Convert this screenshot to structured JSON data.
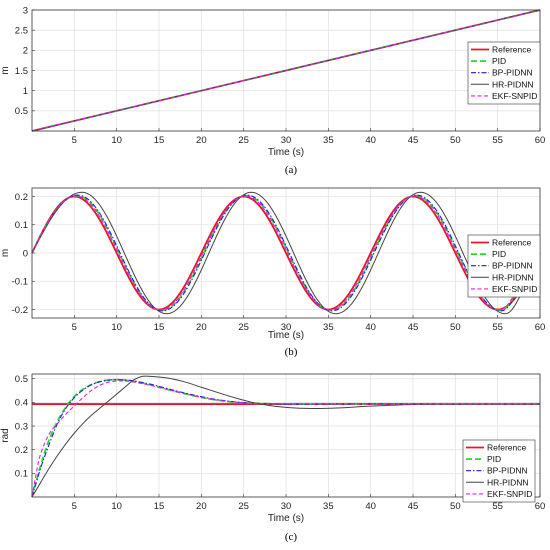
{
  "colors": {
    "Reference": "#e8142e",
    "PID": "#22dd22",
    "BP-PIDNN": "#1f1fd6",
    "HR-PIDNN": "#444444",
    "EKF-SNPID": "#e020e0"
  },
  "chart_data": [
    {
      "type": "line",
      "caption": "(a)",
      "xlabel": "Time (s)",
      "ylabel": "m",
      "xlim": [
        0,
        60
      ],
      "ylim": [
        0,
        3
      ],
      "xticks": [
        5,
        10,
        15,
        20,
        25,
        30,
        35,
        40,
        45,
        50,
        55,
        60
      ],
      "yticks": [
        0.5,
        1,
        1.5,
        2,
        2.5,
        3
      ],
      "grid": true,
      "legend_position": "right",
      "series": [
        {
          "name": "Reference",
          "x": [
            0,
            60
          ],
          "y": [
            0,
            3.0
          ]
        },
        {
          "name": "PID",
          "x": [
            0,
            60
          ],
          "y": [
            0,
            3.0
          ]
        },
        {
          "name": "BP-PIDNN",
          "x": [
            0,
            60
          ],
          "y": [
            0,
            3.0
          ]
        },
        {
          "name": "HR-PIDNN",
          "x": [
            0,
            60
          ],
          "y": [
            0,
            3.0
          ]
        },
        {
          "name": "EKF-SNPID",
          "x": [
            0,
            60
          ],
          "y": [
            0,
            3.0
          ]
        }
      ]
    },
    {
      "type": "line",
      "caption": "(b)",
      "xlabel": "Time (s)",
      "ylabel": "m",
      "xlim": [
        0,
        60
      ],
      "ylim": [
        -0.23,
        0.23
      ],
      "xticks": [
        5,
        10,
        15,
        20,
        25,
        30,
        35,
        40,
        45,
        50,
        55,
        60
      ],
      "yticks": [
        -0.2,
        -0.1,
        0,
        0.1,
        0.2
      ],
      "grid": true,
      "legend_position": "right",
      "series": [
        {
          "name": "Reference",
          "x": [
            0,
            5,
            10,
            15,
            20,
            25,
            30,
            35,
            40,
            45,
            50,
            55,
            60
          ],
          "y": [
            0,
            0.2,
            0,
            -0.2,
            0,
            0.2,
            0,
            -0.2,
            0,
            0.2,
            0,
            -0.2,
            0
          ]
        },
        {
          "name": "PID",
          "x": [
            0,
            5.3,
            10.3,
            15.3,
            20.3,
            25.3,
            30.3,
            35.3,
            40.3,
            45.3,
            50.3,
            55.3,
            60
          ],
          "y": [
            0,
            0.203,
            0,
            -0.203,
            0,
            0.203,
            0,
            -0.203,
            0,
            0.203,
            0,
            -0.203,
            -0.02
          ]
        },
        {
          "name": "BP-PIDNN",
          "x": [
            0,
            5.4,
            10.4,
            15.4,
            20.4,
            25.4,
            30.4,
            35.4,
            40.4,
            45.4,
            50.4,
            55.4,
            60
          ],
          "y": [
            0,
            0.205,
            0,
            -0.205,
            0,
            0.205,
            0,
            -0.205,
            0,
            0.205,
            0,
            -0.205,
            -0.025
          ]
        },
        {
          "name": "HR-PIDNN",
          "x": [
            0,
            5.9,
            10.9,
            15.9,
            20.9,
            25.9,
            30.9,
            35.9,
            40.9,
            45.9,
            50.9,
            55.9,
            60
          ],
          "y": [
            0,
            0.215,
            0,
            -0.215,
            0,
            0.215,
            0,
            -0.215,
            0,
            0.215,
            0,
            -0.215,
            -0.05
          ]
        },
        {
          "name": "EKF-SNPID",
          "x": [
            0,
            5.2,
            10.2,
            15.2,
            20.2,
            25.2,
            30.2,
            35.2,
            40.2,
            45.2,
            50.2,
            55.2,
            60
          ],
          "y": [
            0,
            0.202,
            0,
            -0.202,
            0,
            0.202,
            0,
            -0.202,
            0,
            0.202,
            0,
            -0.202,
            -0.015
          ]
        }
      ]
    },
    {
      "type": "line",
      "caption": "(c)",
      "xlabel": "Time (s)",
      "ylabel": "rad",
      "xlim": [
        0,
        60
      ],
      "ylim": [
        0,
        0.52
      ],
      "xticks": [
        5,
        10,
        15,
        20,
        25,
        30,
        35,
        40,
        45,
        50,
        55,
        60
      ],
      "yticks": [
        0.1,
        0.2,
        0.3,
        0.4,
        0.5
      ],
      "grid": true,
      "legend_position": "bottom-right",
      "series": [
        {
          "name": "Reference",
          "x": [
            0,
            60
          ],
          "y": [
            0.393,
            0.393
          ]
        },
        {
          "name": "PID",
          "x": [
            0,
            1,
            2,
            3,
            4,
            5,
            6,
            7,
            8,
            9,
            10,
            11,
            12,
            14,
            16,
            18,
            20,
            22,
            25,
            30,
            35,
            40,
            50,
            60
          ],
          "y": [
            0,
            0.13,
            0.24,
            0.32,
            0.38,
            0.425,
            0.455,
            0.475,
            0.488,
            0.494,
            0.496,
            0.494,
            0.489,
            0.474,
            0.455,
            0.437,
            0.421,
            0.409,
            0.398,
            0.393,
            0.393,
            0.393,
            0.393,
            0.393
          ]
        },
        {
          "name": "BP-PIDNN",
          "x": [
            0,
            1,
            2,
            3,
            4,
            5,
            6,
            7,
            8,
            9,
            10,
            11,
            12,
            14,
            16,
            18,
            20,
            22,
            25,
            30,
            35,
            40,
            50,
            60
          ],
          "y": [
            0,
            0.12,
            0.22,
            0.31,
            0.375,
            0.42,
            0.452,
            0.474,
            0.487,
            0.494,
            0.496,
            0.495,
            0.491,
            0.477,
            0.458,
            0.44,
            0.424,
            0.411,
            0.399,
            0.392,
            0.393,
            0.394,
            0.393,
            0.393
          ]
        },
        {
          "name": "HR-PIDNN",
          "x": [
            0,
            1,
            2,
            3,
            4,
            5,
            6,
            7,
            8,
            9,
            10,
            11,
            12,
            13,
            14,
            16,
            18,
            20,
            22,
            24,
            26,
            28,
            30,
            33,
            36,
            40,
            45,
            50,
            60
          ],
          "y": [
            0,
            0.06,
            0.12,
            0.175,
            0.225,
            0.27,
            0.31,
            0.345,
            0.375,
            0.405,
            0.435,
            0.465,
            0.495,
            0.51,
            0.51,
            0.503,
            0.487,
            0.464,
            0.441,
            0.419,
            0.4,
            0.387,
            0.379,
            0.374,
            0.376,
            0.384,
            0.391,
            0.393,
            0.393
          ]
        },
        {
          "name": "EKF-SNPID",
          "x": [
            0,
            0.5,
            1,
            2,
            3,
            4,
            5,
            6,
            7,
            8,
            9,
            10,
            11,
            12,
            14,
            16,
            18,
            20,
            22,
            25,
            30,
            35,
            40,
            50,
            60
          ],
          "y": [
            0,
            0.1,
            0.18,
            0.265,
            0.31,
            0.35,
            0.385,
            0.42,
            0.45,
            0.472,
            0.485,
            0.49,
            0.49,
            0.486,
            0.472,
            0.454,
            0.437,
            0.421,
            0.409,
            0.398,
            0.393,
            0.393,
            0.393,
            0.393,
            0.393
          ]
        }
      ]
    }
  ]
}
